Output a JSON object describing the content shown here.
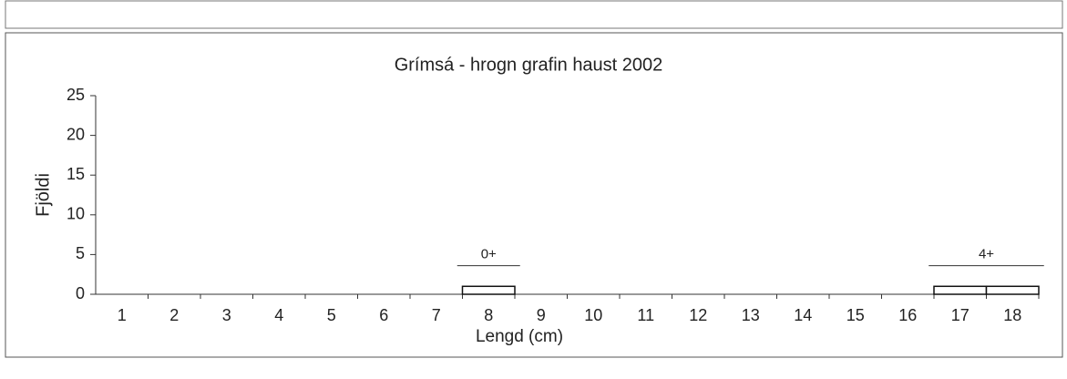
{
  "chart_data": {
    "type": "bar",
    "title": "Grímsá - hrogn grafin haust 2002",
    "x_label": "Lengd (cm)",
    "y_label": "Fjöldi",
    "categories": [
      "1",
      "2",
      "3",
      "4",
      "5",
      "6",
      "7",
      "8",
      "9",
      "10",
      "11",
      "12",
      "13",
      "14",
      "15",
      "16",
      "17",
      "18"
    ],
    "values": [
      0,
      0,
      0,
      0,
      0,
      0,
      0,
      1,
      0,
      0,
      0,
      0,
      0,
      0,
      0,
      0,
      1,
      1
    ],
    "color": "#ffffff",
    "ylim": [
      0,
      25
    ],
    "yticks": [
      0,
      5,
      10,
      15,
      20,
      25
    ],
    "grid": false,
    "annotations": [
      {
        "text": "0+",
        "x": [
          "8"
        ]
      },
      {
        "text": "4+",
        "x": [
          "17",
          "18"
        ]
      }
    ]
  }
}
